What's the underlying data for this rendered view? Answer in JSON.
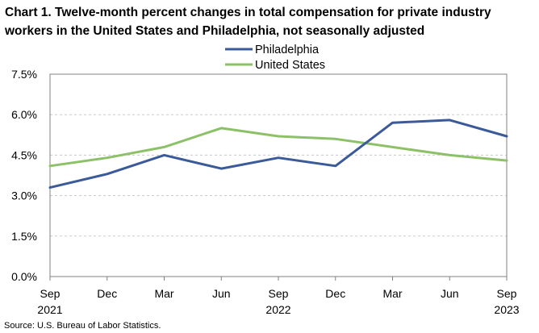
{
  "chart_data": {
    "type": "line",
    "title": "Chart 1. Twelve-month percent changes in total compensation for private industry workers in the United States and Philadelphia, not seasonally adjusted",
    "xlabel": "",
    "ylabel": "",
    "x": [
      "Sep",
      "Dec",
      "Mar",
      "Jun",
      "Sep",
      "Dec",
      "Mar",
      "Jun",
      "Sep"
    ],
    "x_years": [
      "2021",
      "",
      "",
      "",
      "2022",
      "",
      "",
      "",
      "2023"
    ],
    "ylim": [
      0,
      7.5
    ],
    "y_ticks": [
      "0.0%",
      "1.5%",
      "3.0%",
      "4.5%",
      "6.0%",
      "7.5%"
    ],
    "y_tick_values": [
      0,
      1.5,
      3.0,
      4.5,
      6.0,
      7.5
    ],
    "grid": true,
    "legend_position": "top-center",
    "series": [
      {
        "name": "Philadelphia",
        "color": "#3b5a9a",
        "values": [
          3.3,
          3.8,
          4.5,
          4.0,
          4.4,
          4.1,
          5.7,
          5.8,
          5.2
        ]
      },
      {
        "name": "United States",
        "color": "#8cc168",
        "values": [
          4.1,
          4.4,
          4.8,
          5.5,
          5.2,
          5.1,
          4.8,
          4.5,
          4.3
        ]
      }
    ],
    "source": "Source: U.S. Bureau of Labor Statistics."
  }
}
